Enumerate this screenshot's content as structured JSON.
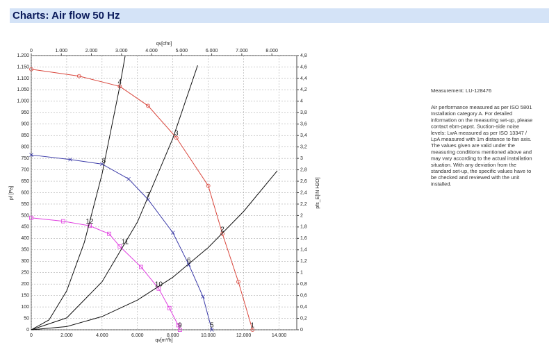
{
  "header": {
    "title": "Charts: Air flow 50 Hz"
  },
  "chart_data": {
    "type": "line",
    "xlabel": "qv[m³/h]",
    "x2label": "qv[cfm]",
    "ylabel": "pf [Pa]",
    "y2label": "pfs_E[IN H2O]",
    "xlim": [
      0,
      15000
    ],
    "x2lim": [
      0,
      8829
    ],
    "ylim": [
      0,
      1200
    ],
    "y2lim": [
      0,
      4.8
    ],
    "grid": true,
    "xticks": [
      0,
      {
        "value": 2000,
        "label": "2.000"
      },
      {
        "value": 4000,
        "label": "4.000"
      },
      {
        "value": 6000,
        "label": "6.000"
      },
      {
        "value": 8000,
        "label": "8.000"
      },
      {
        "value": 10000,
        "label": "10.000"
      },
      {
        "value": 12000,
        "label": "12.000"
      },
      {
        "value": 14000,
        "label": "14.000"
      }
    ],
    "x2ticks": [
      0,
      {
        "value": 1000,
        "label": "1.000"
      },
      {
        "value": 2000,
        "label": "2.000"
      },
      {
        "value": 3000,
        "label": "3.000"
      },
      {
        "value": 4000,
        "label": "4.000"
      },
      {
        "value": 5000,
        "label": "5.000"
      },
      {
        "value": 6000,
        "label": "6.000"
      },
      {
        "value": 7000,
        "label": "7.000"
      },
      {
        "value": 8000,
        "label": "8.000"
      }
    ],
    "yticks": [
      0,
      50,
      100,
      150,
      200,
      250,
      300,
      350,
      400,
      450,
      500,
      550,
      600,
      650,
      700,
      750,
      800,
      850,
      900,
      950,
      {
        "value": 1000,
        "label": "1.000"
      },
      {
        "value": 1050,
        "label": "1.050"
      },
      {
        "value": 1100,
        "label": "1.100"
      },
      {
        "value": 1150,
        "label": "1.150"
      },
      {
        "value": 1200,
        "label": "1.200"
      }
    ],
    "y2ticks": [
      0,
      {
        "value": 0.2,
        "label": "0,2"
      },
      {
        "value": 0.4,
        "label": "0,4"
      },
      {
        "value": 0.6,
        "label": "0,6"
      },
      {
        "value": 0.8,
        "label": "0,8"
      },
      {
        "value": 1,
        "label": "1"
      },
      {
        "value": 1.2,
        "label": "1,2"
      },
      {
        "value": 1.4,
        "label": "1,4"
      },
      {
        "value": 1.6,
        "label": "1,6"
      },
      {
        "value": 1.8,
        "label": "1,8"
      },
      {
        "value": 2,
        "label": "2"
      },
      {
        "value": 2.2,
        "label": "2,2"
      },
      {
        "value": 2.4,
        "label": "2,4"
      },
      {
        "value": 2.6,
        "label": "2,6"
      },
      {
        "value": 2.8,
        "label": "2,8"
      },
      {
        "value": 3,
        "label": "3"
      },
      {
        "value": 3.2,
        "label": "3,2"
      },
      {
        "value": 3.4,
        "label": "3,4"
      },
      {
        "value": 3.6,
        "label": "3,6"
      },
      {
        "value": 3.8,
        "label": "3,8"
      },
      {
        "value": 4,
        "label": "4"
      },
      {
        "value": 4.2,
        "label": "4,2"
      },
      {
        "value": 4.4,
        "label": "4,4"
      },
      {
        "value": 4.6,
        "label": "4,6"
      },
      {
        "value": 4.8,
        "label": "4,8"
      }
    ],
    "series": [
      {
        "color": "#d9453b",
        "marker": "circle",
        "x": [
          0,
          2700,
          5000,
          6600,
          8200,
          10000,
          10800,
          11700,
          12500
        ],
        "values": [
          1140,
          1110,
          1065,
          980,
          840,
          630,
          420,
          210,
          0
        ]
      },
      {
        "color": "#3a3aa8",
        "marker": "cross",
        "x": [
          0,
          2200,
          4000,
          5500,
          6600,
          8000,
          8900,
          9700,
          10200
        ],
        "values": [
          765,
          745,
          725,
          660,
          570,
          425,
          285,
          145,
          0
        ]
      },
      {
        "color": "#e040e0",
        "marker": "square",
        "x": [
          0,
          1800,
          3300,
          4400,
          5000,
          6200,
          7200,
          7800,
          8300,
          8400
        ],
        "values": [
          490,
          475,
          455,
          420,
          365,
          275,
          180,
          95,
          20,
          0
        ]
      },
      {
        "color": "#111111",
        "marker": "none",
        "x": [
          0,
          1000,
          2000,
          3000,
          4000,
          5000,
          5300
        ],
        "values": [
          0,
          43,
          170,
          383,
          682,
          1065,
          1197
        ]
      },
      {
        "color": "#111111",
        "marker": "none",
        "x": [
          0,
          2000,
          4000,
          6000,
          8000,
          9400
        ],
        "values": [
          0,
          52,
          210,
          472,
          838,
          1157
        ]
      },
      {
        "color": "#111111",
        "marker": "none",
        "x": [
          0,
          2000,
          4000,
          6000,
          8000,
          10000,
          12000,
          13900
        ],
        "values": [
          0,
          14,
          58,
          130,
          230,
          360,
          518,
          696
        ]
      }
    ],
    "annotations": [
      {
        "text": "4",
        "x": 5000,
        "y": 1065
      },
      {
        "text": "3",
        "x": 8200,
        "y": 840
      },
      {
        "text": "2",
        "x": 10800,
        "y": 420
      },
      {
        "text": "1",
        "x": 12500,
        "y": 0
      },
      {
        "text": "8",
        "x": 4100,
        "y": 720
      },
      {
        "text": "7",
        "x": 6600,
        "y": 570
      },
      {
        "text": "6",
        "x": 8900,
        "y": 285
      },
      {
        "text": "5",
        "x": 10200,
        "y": 0
      },
      {
        "text": "12",
        "x": 3300,
        "y": 455
      },
      {
        "text": "11",
        "x": 5300,
        "y": 365
      },
      {
        "text": "10",
        "x": 7200,
        "y": 180
      },
      {
        "text": "9",
        "x": 8400,
        "y": 0
      }
    ]
  },
  "notes": {
    "measurement": "Measurement: LU-128476",
    "lines": [
      "Air performance measured as per ISO 5801",
      "Installation category A. For detailed",
      "information on the measuring set-up, please",
      "contact ebm-papst. Suction-side noise",
      "levels: LwA measured as per ISO 13347 /",
      "LpA measured with 1m distance to fan axis.",
      "The values given are valid under the",
      "measuring conditions mentioned above and",
      "may vary according to the actual installation",
      "situation. With any deviation from the",
      "standard set-up, the specific values have to",
      "be checked and reviewed with the unit",
      "installed."
    ]
  }
}
